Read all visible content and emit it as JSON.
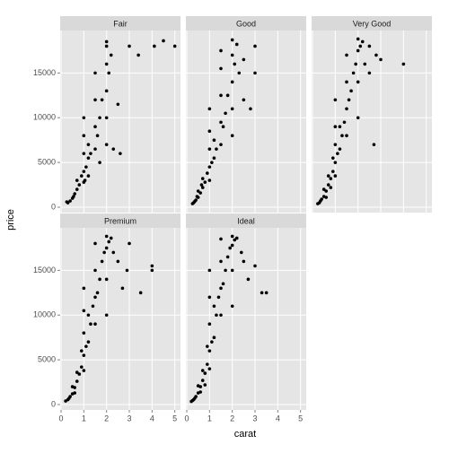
{
  "chart_data": {
    "type": "scatter",
    "xlabel": "carat",
    "ylabel": "price",
    "xlim": [
      -0.04,
      5.25
    ],
    "ylim": [
      -600,
      19750
    ],
    "xticks": [
      0,
      1,
      2,
      3,
      4,
      5
    ],
    "yticks": [
      0,
      5000,
      10000,
      15000
    ],
    "grid": true,
    "color": "#000000",
    "facets": [
      {
        "title": "Fair",
        "x": [
          0.25,
          0.3,
          0.4,
          0.5,
          0.55,
          0.6,
          0.7,
          0.7,
          0.8,
          0.9,
          1.0,
          1.0,
          1.0,
          1.0,
          1.0,
          1.05,
          1.1,
          1.2,
          1.2,
          1.2,
          1.3,
          1.5,
          1.5,
          1.5,
          1.5,
          1.6,
          1.7,
          1.7,
          1.8,
          2.0,
          2.0,
          2.0,
          2.0,
          2.0,
          2.0,
          2.1,
          2.2,
          2.3,
          2.5,
          2.6,
          3.0,
          3.4,
          4.1,
          4.5,
          5.0
        ],
        "y": [
          600,
          500,
          700,
          1000,
          1200,
          1500,
          2000,
          3000,
          2500,
          3500,
          2800,
          4000,
          6000,
          8000,
          10000,
          3000,
          4500,
          3500,
          5500,
          7000,
          6000,
          6500,
          9000,
          12000,
          15000,
          8000,
          5000,
          10000,
          12000,
          7000,
          10000,
          13000,
          16000,
          18000,
          18500,
          15000,
          17000,
          6500,
          11500,
          6000,
          18000,
          17000,
          18000,
          18600,
          18000
        ]
      },
      {
        "title": "Good",
        "x": [
          0.25,
          0.3,
          0.35,
          0.4,
          0.5,
          0.5,
          0.6,
          0.7,
          0.7,
          0.8,
          0.9,
          1.0,
          1.0,
          1.0,
          1.0,
          1.0,
          1.1,
          1.2,
          1.2,
          1.3,
          1.5,
          1.5,
          1.5,
          1.5,
          1.5,
          1.6,
          1.7,
          1.8,
          2.0,
          2.0,
          2.0,
          2.0,
          2.0,
          2.1,
          2.2,
          2.3,
          2.5,
          2.5,
          2.8,
          3.0,
          3.0,
          0.45,
          0.65
        ],
        "y": [
          400,
          500,
          650,
          800,
          1100,
          1800,
          1600,
          2200,
          3200,
          2800,
          3800,
          3000,
          4500,
          6500,
          8500,
          11000,
          5000,
          5500,
          7500,
          6500,
          7000,
          9500,
          12500,
          15500,
          17500,
          9000,
          10500,
          12500,
          8000,
          11000,
          14000,
          17000,
          18700,
          16000,
          18200,
          15000,
          12000,
          16500,
          11000,
          15000,
          18000,
          1200,
          2500
        ]
      },
      {
        "title": "Very Good",
        "x": [
          0.23,
          0.3,
          0.35,
          0.4,
          0.5,
          0.5,
          0.6,
          0.7,
          0.7,
          0.8,
          0.9,
          0.9,
          1.0,
          1.0,
          1.0,
          1.0,
          1.0,
          1.1,
          1.2,
          1.2,
          1.3,
          1.4,
          1.5,
          1.5,
          1.5,
          1.5,
          1.6,
          1.7,
          1.8,
          1.9,
          2.0,
          2.0,
          2.0,
          2.0,
          2.1,
          2.2,
          2.3,
          2.5,
          2.5,
          2.7,
          2.8,
          3.0,
          4.0,
          0.6,
          0.8
        ],
        "y": [
          400,
          500,
          700,
          900,
          1200,
          2000,
          1800,
          2500,
          3500,
          3200,
          4000,
          5500,
          3500,
          5000,
          7000,
          9000,
          12000,
          6000,
          6500,
          9000,
          8000,
          9500,
          8000,
          11000,
          14000,
          17000,
          12000,
          13000,
          15000,
          16000,
          10000,
          14000,
          17500,
          18800,
          18000,
          18500,
          16000,
          15000,
          18000,
          7000,
          17000,
          16500,
          16000,
          1100,
          2200
        ]
      },
      {
        "title": "Premium",
        "x": [
          0.2,
          0.3,
          0.35,
          0.4,
          0.5,
          0.5,
          0.6,
          0.7,
          0.7,
          0.8,
          0.9,
          0.9,
          1.0,
          1.0,
          1.0,
          1.0,
          1.0,
          1.1,
          1.2,
          1.2,
          1.3,
          1.4,
          1.5,
          1.5,
          1.5,
          1.5,
          1.6,
          1.7,
          1.8,
          1.9,
          2.0,
          2.0,
          2.0,
          2.0,
          2.1,
          2.2,
          2.3,
          2.5,
          2.7,
          2.9,
          3.0,
          3.5,
          4.0,
          4.0,
          0.6
        ],
        "y": [
          400,
          550,
          700,
          900,
          1200,
          2000,
          1900,
          2600,
          3600,
          3400,
          4200,
          6000,
          3800,
          5500,
          8000,
          10500,
          13000,
          6500,
          7000,
          10000,
          9000,
          11000,
          9000,
          12000,
          15000,
          18000,
          12500,
          14000,
          16000,
          17000,
          10000,
          14000,
          17500,
          18800,
          18200,
          18600,
          17000,
          16000,
          13000,
          15000,
          18000,
          12500,
          15500,
          15000,
          1300
        ]
      },
      {
        "title": "Ideal",
        "x": [
          0.2,
          0.25,
          0.3,
          0.35,
          0.4,
          0.5,
          0.5,
          0.6,
          0.7,
          0.7,
          0.8,
          0.9,
          0.9,
          1.0,
          1.0,
          1.0,
          1.0,
          1.0,
          1.1,
          1.2,
          1.2,
          1.3,
          1.4,
          1.5,
          1.5,
          1.5,
          1.5,
          1.6,
          1.7,
          1.8,
          1.9,
          2.0,
          2.0,
          2.0,
          2.0,
          2.1,
          2.2,
          2.4,
          2.5,
          2.7,
          3.0,
          3.3,
          3.5,
          0.6,
          0.8
        ],
        "y": [
          350,
          450,
          550,
          700,
          900,
          1300,
          2100,
          2000,
          2700,
          3800,
          3500,
          4500,
          6500,
          4000,
          6000,
          9000,
          12000,
          15000,
          7000,
          7500,
          11000,
          10000,
          12000,
          10000,
          13000,
          16000,
          18500,
          13500,
          15000,
          16500,
          17500,
          11000,
          15000,
          17800,
          18800,
          18400,
          18600,
          17000,
          16000,
          14000,
          15500,
          12500,
          12500,
          1400,
          2200
        ]
      }
    ]
  }
}
